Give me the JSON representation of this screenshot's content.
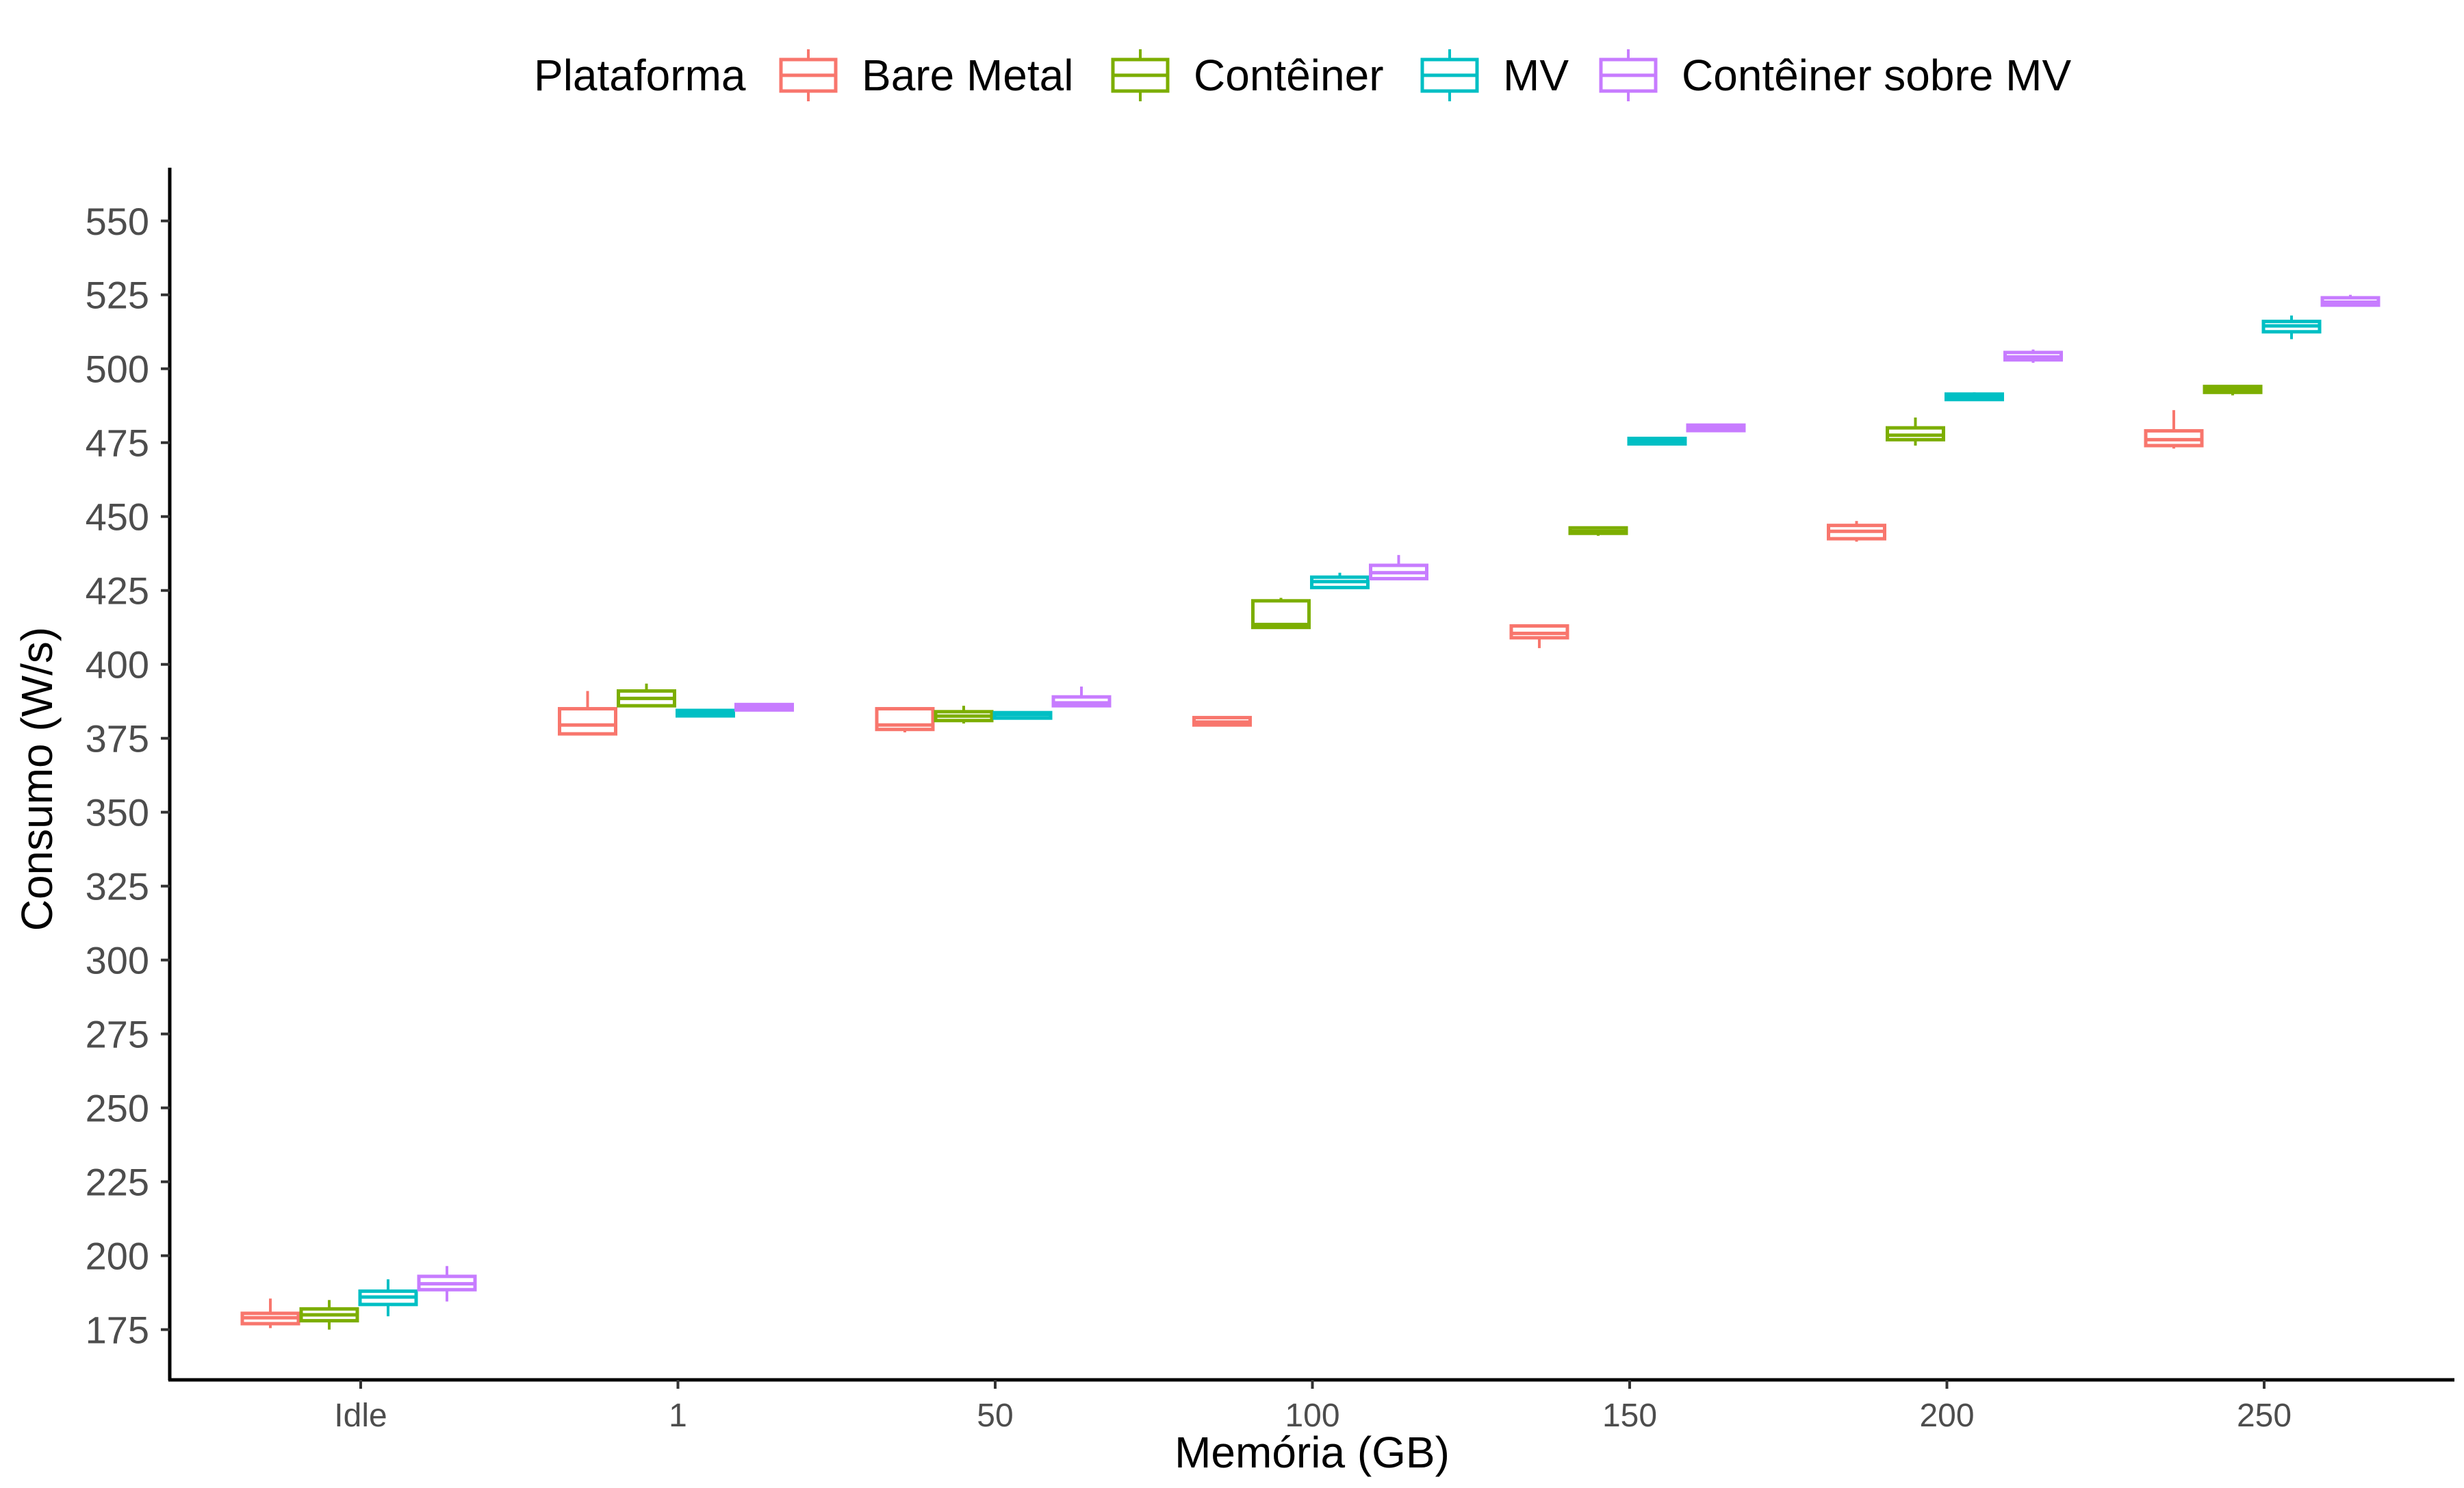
{
  "chart_data": {
    "type": "boxplot",
    "title": "",
    "xlabel": "Memória (GB)",
    "ylabel": "Consumo (W/s)",
    "ylim": [
      158,
      568
    ],
    "y_ticks": [
      175,
      200,
      225,
      250,
      275,
      300,
      325,
      350,
      375,
      400,
      425,
      450,
      475,
      500,
      525,
      550
    ],
    "categories": [
      "Idle",
      "1",
      "50",
      "100",
      "150",
      "200",
      "250"
    ],
    "legend_title": "Plataforma",
    "legend_position": "top",
    "grid": false,
    "series": [
      {
        "name": "Bare Metal",
        "color": "#F8766D",
        "boxes": [
          {
            "category": "Idle",
            "min": 175.5,
            "q1": 177,
            "median": 179,
            "q3": 180.5,
            "max": 185.5
          },
          {
            "category": "1",
            "min": 376,
            "q1": 376.5,
            "median": 379.5,
            "q3": 385,
            "max": 391
          },
          {
            "category": "50",
            "min": 377,
            "q1": 378,
            "median": 379.5,
            "q3": 385,
            "max": 385.5
          },
          {
            "category": "100",
            "min": 379.5,
            "q1": 379.5,
            "median": 380.5,
            "q3": 382,
            "max": 382
          },
          {
            "category": "150",
            "min": 405.5,
            "q1": 409,
            "median": 410.5,
            "q3": 413,
            "max": 413
          },
          {
            "category": "200",
            "min": 441.5,
            "q1": 442.5,
            "median": 445,
            "q3": 447,
            "max": 448.5
          },
          {
            "category": "250",
            "min": 473,
            "q1": 474,
            "median": 476,
            "q3": 479,
            "max": 486
          }
        ]
      },
      {
        "name": "Contêiner",
        "color": "#7CAE00",
        "boxes": [
          {
            "category": "Idle",
            "min": 175,
            "q1": 178,
            "median": 180,
            "q3": 182,
            "max": 185
          },
          {
            "category": "1",
            "min": 386,
            "q1": 386,
            "median": 388.5,
            "q3": 391,
            "max": 393.5
          },
          {
            "category": "50",
            "min": 380,
            "q1": 381,
            "median": 382.5,
            "q3": 384,
            "max": 386
          },
          {
            "category": "100",
            "min": 412,
            "q1": 412.5,
            "median": 413.5,
            "q3": 421.5,
            "max": 422.5
          },
          {
            "category": "150",
            "min": 443.5,
            "q1": 444.5,
            "median": 445,
            "q3": 446,
            "max": 446.5
          },
          {
            "category": "200",
            "min": 474,
            "q1": 476,
            "median": 477.5,
            "q3": 480,
            "max": 483.5
          },
          {
            "category": "250",
            "min": 491,
            "q1": 492,
            "median": 493,
            "q3": 494,
            "max": 494.5
          }
        ]
      },
      {
        "name": "MV",
        "color": "#00BFC4",
        "boxes": [
          {
            "category": "Idle",
            "min": 179.5,
            "q1": 183.5,
            "median": 186,
            "q3": 188,
            "max": 192
          },
          {
            "category": "1",
            "min": 383,
            "q1": 383,
            "median": 383.5,
            "q3": 384,
            "max": 384
          },
          {
            "category": "50",
            "min": 382,
            "q1": 382,
            "median": 383,
            "q3": 383.5,
            "max": 383.5
          },
          {
            "category": "100",
            "min": 425.5,
            "q1": 426,
            "median": 428,
            "q3": 429.5,
            "max": 431
          },
          {
            "category": "150",
            "min": 475,
            "q1": 475,
            "median": 475.5,
            "q3": 476,
            "max": 476
          },
          {
            "category": "200",
            "min": 490,
            "q1": 490,
            "median": 490.5,
            "q3": 491,
            "max": 492
          },
          {
            "category": "250",
            "min": 510,
            "q1": 512.5,
            "median": 514.5,
            "q3": 516,
            "max": 518
          }
        ]
      },
      {
        "name": "Contêiner sobre MV",
        "color": "#C77CFF",
        "boxes": [
          {
            "category": "Idle",
            "min": 184.5,
            "q1": 188.5,
            "median": 190.5,
            "q3": 193,
            "max": 196.5
          },
          {
            "category": "1",
            "min": 385,
            "q1": 385,
            "median": 385.5,
            "q3": 386,
            "max": 386
          },
          {
            "category": "50",
            "min": 386,
            "q1": 386,
            "median": 387,
            "q3": 389,
            "max": 392.5
          },
          {
            "category": "100",
            "min": 428.5,
            "q1": 429,
            "median": 431,
            "q3": 433.5,
            "max": 437
          },
          {
            "category": "150",
            "min": 479.5,
            "q1": 479.5,
            "median": 480,
            "q3": 480.5,
            "max": 480.5
          },
          {
            "category": "200",
            "min": 502,
            "q1": 503,
            "median": 504,
            "q3": 505.5,
            "max": 506.5
          },
          {
            "category": "250",
            "min": 521,
            "q1": 521.5,
            "median": 522.5,
            "q3": 524,
            "max": 525
          }
        ]
      }
    ]
  }
}
